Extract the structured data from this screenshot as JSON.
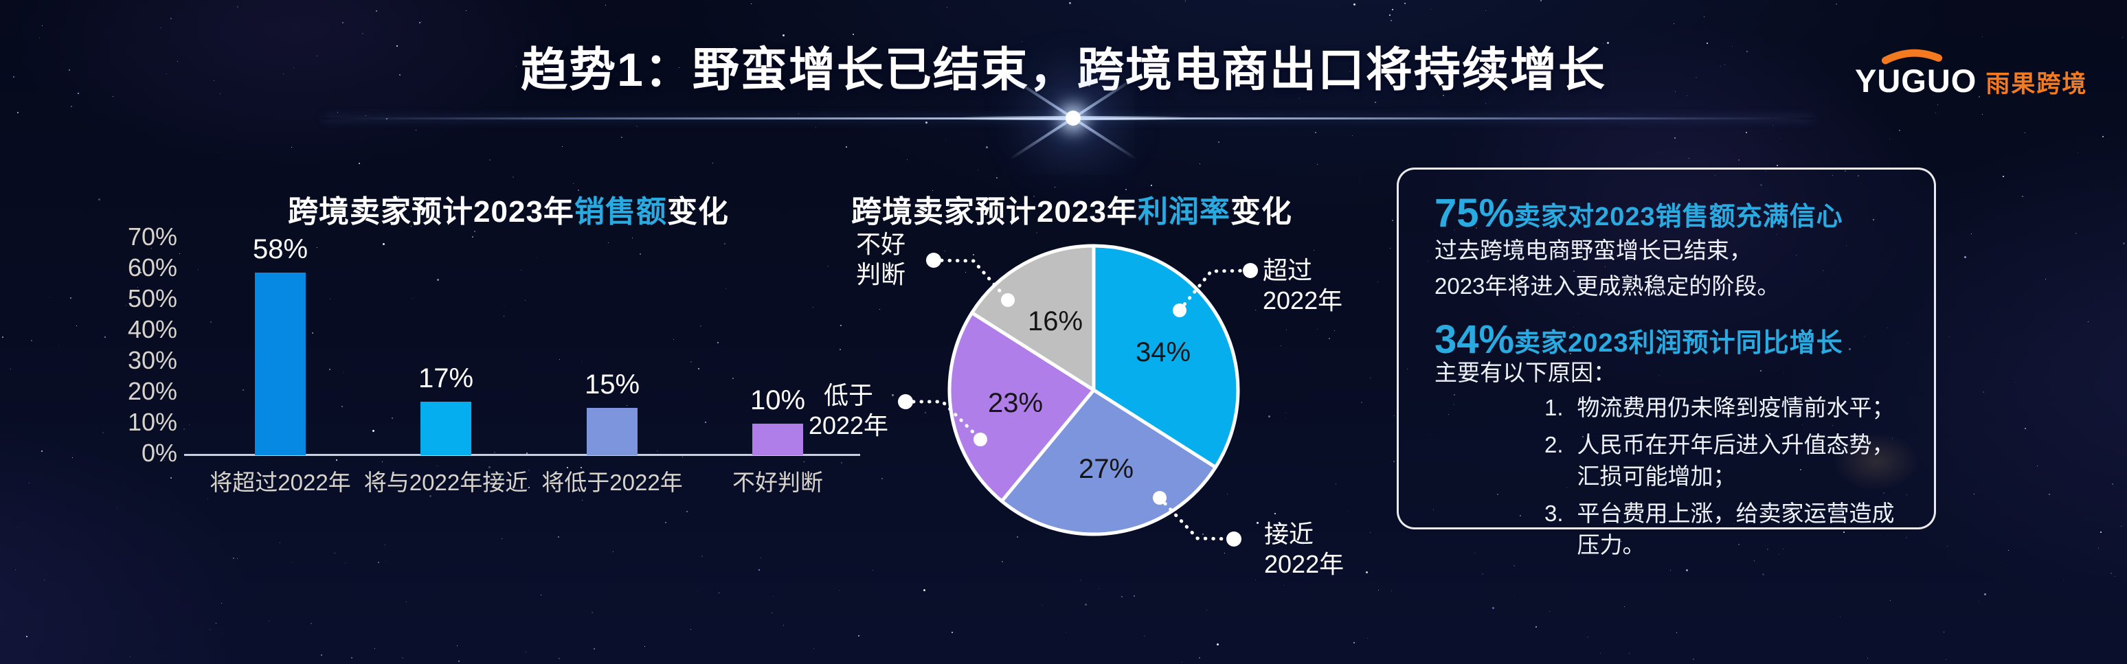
{
  "title": "趋势1：野蛮增长已结束，跨境电商出口将持续增长",
  "logo": {
    "brand": "YUGUO",
    "brand_cn": "雨果跨境",
    "arc_color": "#f47a1f"
  },
  "colors": {
    "accent": "#29abe2",
    "axis_text": "#d8d4cc",
    "pie_label_text": "#151515",
    "background": "#070c22"
  },
  "chart_data": [
    {
      "type": "bar",
      "title_parts": [
        "跨境卖家预计2023年",
        "销售额",
        "变化"
      ],
      "categories": [
        "将超过2022年",
        "将与2022年接近",
        "将低于2022年",
        "不好判断"
      ],
      "values": [
        58,
        17,
        15,
        10
      ],
      "value_labels": [
        "58%",
        "17%",
        "15%",
        "10%"
      ],
      "colors": [
        "#0689e3",
        "#05aeef",
        "#7d95dc",
        "#b07ee8"
      ],
      "xlabel": "",
      "ylabel": "",
      "ylim": [
        0,
        70
      ],
      "ytick_step": 10,
      "ytick_labels": [
        "70%",
        "60%",
        "50%",
        "40%",
        "30%",
        "20%",
        "10%",
        "0%"
      ],
      "grid": false,
      "legend": "none"
    },
    {
      "type": "pie",
      "title_parts": [
        "跨境卖家预计2023年",
        "利润率",
        "变化"
      ],
      "start_angle_deg": 0,
      "direction": "clockwise",
      "slices": [
        {
          "label": "超过2022年",
          "label_lines": [
            "超过",
            "2022年"
          ],
          "value": 34,
          "pct_label": "34%",
          "color": "#06aeed"
        },
        {
          "label": "接近2022年",
          "label_lines": [
            "接近",
            "2022年"
          ],
          "value": 27,
          "pct_label": "27%",
          "color": "#7d95dc"
        },
        {
          "label": "低于2022年",
          "label_lines": [
            "低于",
            "2022年"
          ],
          "value": 23,
          "pct_label": "23%",
          "color": "#b07ee8"
        },
        {
          "label": "不好判断",
          "label_lines": [
            "不好",
            "判断"
          ],
          "value": 16,
          "pct_label": "16%",
          "color": "#bfbfbf"
        }
      ]
    }
  ],
  "info_panel": {
    "stat1_value": "75%",
    "stat1_text": "卖家对2023销售额充满信心",
    "para1_lines": [
      "过去跨境电商野蛮增长已结束，",
      "2023年将进入更成熟稳定的阶段。"
    ],
    "stat2_value": "34%",
    "stat2_text": "卖家2023利润预计同比增长",
    "reasons_intro": "主要有以下原因：",
    "reasons": [
      {
        "num": "1.",
        "text": "物流费用仍未降到疫情前水平；"
      },
      {
        "num": "2.",
        "text": "人民币在开年后进入升值态势，汇损可能增加；"
      },
      {
        "num": "3.",
        "text": "平台费用上涨，给卖家运营造成压力。"
      }
    ]
  }
}
